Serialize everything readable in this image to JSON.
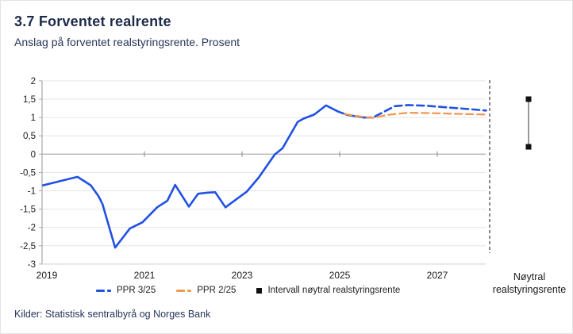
{
  "header": {
    "title": "3.7 Forventet realrente",
    "subtitle": "Anslag på forventet realstyringsrente. Prosent"
  },
  "footer": {
    "sources": "Kilder: Statistisk sentralbyrå og Norges Bank"
  },
  "right_panel": {
    "label_line1": "Nøytral",
    "label_line2": "realstyringsrente"
  },
  "legend": {
    "items": [
      {
        "label": "PPR 3/25",
        "marker": "dash-marker-icon",
        "color": "#2151e3"
      },
      {
        "label": "PPR 2/25",
        "marker": "dash-marker-icon",
        "color": "#ef9a52"
      },
      {
        "label": "Intervall nøytral realstyringsrente",
        "marker": "square-marker-icon",
        "color": "#111111"
      }
    ]
  },
  "colors": {
    "accent_blue": "#2151e3",
    "accent_orange": "#ef9a52",
    "navy_text": "#1d2b49",
    "grid": "#e6e6e6",
    "zero_line": "#b3b3b3",
    "axis": "#a8a8a8",
    "tick_text": "#1a1a1a",
    "separator": "#111111",
    "neutral_marker": "#111111"
  },
  "chart_data": {
    "type": "line",
    "title": "3.7 Forventet realrente",
    "subtitle": "Anslag på forventet realstyringsrente. Prosent",
    "ylabel": "Prosent",
    "ylim": [
      -3,
      2
    ],
    "ytick_step": 0.5,
    "y_ticks": [
      2,
      1.5,
      1,
      0.5,
      0,
      -0.5,
      -1,
      -1.5,
      -2,
      -2.5,
      -3
    ],
    "xlim": [
      2018.92,
      2028.05
    ],
    "x_ticks": [
      2019,
      2021,
      2023,
      2025,
      2027
    ],
    "grid": "horizontal",
    "legend_position": "bottom",
    "series": [
      {
        "name": "PPR 3/25 (historikk)",
        "color": "#2151e3",
        "style": "solid",
        "width": 2.6,
        "points": [
          [
            2018.92,
            -0.85
          ],
          [
            2019.63,
            -0.62
          ],
          [
            2019.9,
            -0.85
          ],
          [
            2020.06,
            -1.15
          ],
          [
            2020.14,
            -1.36
          ],
          [
            2020.4,
            -2.55
          ],
          [
            2020.7,
            -2.03
          ],
          [
            2020.96,
            -1.86
          ],
          [
            2021.26,
            -1.45
          ],
          [
            2021.47,
            -1.27
          ],
          [
            2021.63,
            -0.84
          ],
          [
            2021.91,
            -1.43
          ],
          [
            2022.1,
            -1.08
          ],
          [
            2022.3,
            -1.05
          ],
          [
            2022.45,
            -1.04
          ],
          [
            2022.66,
            -1.45
          ],
          [
            2023.1,
            -1.02
          ],
          [
            2023.34,
            -0.64
          ],
          [
            2023.67,
            -0.01
          ],
          [
            2023.83,
            0.16
          ],
          [
            2024.14,
            0.88
          ],
          [
            2024.26,
            0.97
          ],
          [
            2024.48,
            1.08
          ],
          [
            2024.72,
            1.33
          ],
          [
            2024.97,
            1.16
          ],
          [
            2025.16,
            1.07
          ],
          [
            2025.5,
            1.0
          ]
        ]
      },
      {
        "name": "PPR 3/25",
        "color": "#2151e3",
        "style": "dashed",
        "width": 2.6,
        "points": [
          [
            2025.5,
            1.0
          ],
          [
            2025.68,
            1.0
          ],
          [
            2026.13,
            1.31
          ],
          [
            2026.4,
            1.34
          ],
          [
            2026.78,
            1.32
          ],
          [
            2027.16,
            1.28
          ],
          [
            2027.54,
            1.24
          ],
          [
            2028.0,
            1.19
          ]
        ]
      },
      {
        "name": "PPR 2/25",
        "color": "#ef9a52",
        "style": "dashed",
        "width": 2.3,
        "points": [
          [
            2025.1,
            1.1
          ],
          [
            2025.35,
            1.04
          ],
          [
            2025.68,
            0.99
          ],
          [
            2025.97,
            1.07
          ],
          [
            2026.4,
            1.13
          ],
          [
            2026.9,
            1.12
          ],
          [
            2027.4,
            1.1
          ],
          [
            2028.0,
            1.08
          ]
        ]
      }
    ],
    "neutral_interval": {
      "label": "Nøytral realstyringsrente",
      "low": 0.2,
      "high": 1.5
    }
  }
}
